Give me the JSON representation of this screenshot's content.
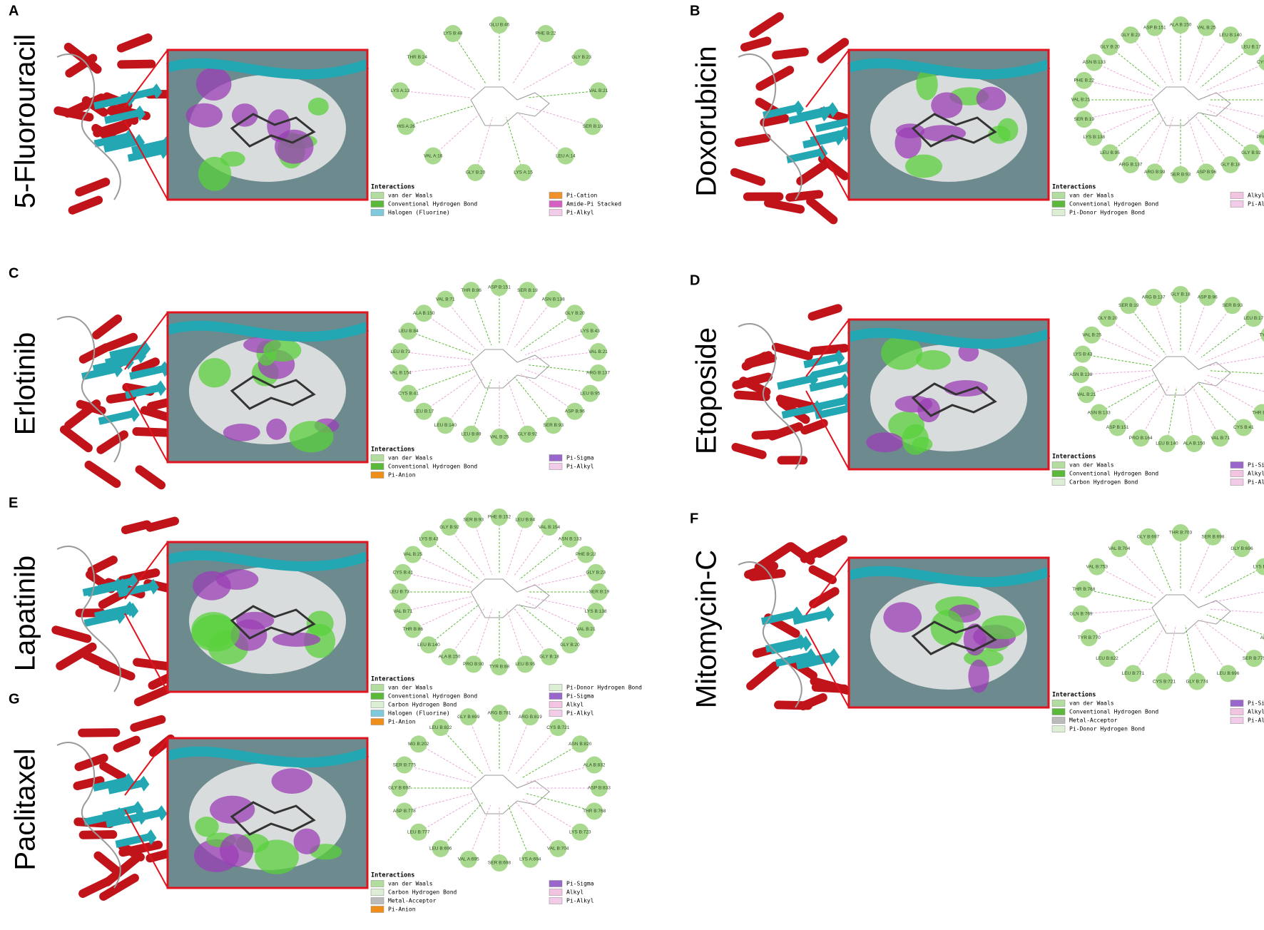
{
  "panels": [
    {
      "letter": "A",
      "name": "5-Fluorouracil",
      "legend_title": "Interactions",
      "legend": [
        {
          "name": "van der Waals",
          "color": "#b2dd9f"
        },
        {
          "name": "Conventional Hydrogen Bond",
          "color": "#5cb83a"
        },
        {
          "name": "Halogen (Fluorine)",
          "color": "#7fc9dc"
        },
        {
          "name": "Pi-Cation",
          "color": "#ef922b"
        },
        {
          "name": "Amide-Pi Stacked",
          "color": "#d660c2"
        },
        {
          "name": "Pi-Alkyl",
          "color": "#f2cbe8"
        }
      ],
      "residues": [
        "GLU B:46",
        "PHE B:22",
        "GLY B:23",
        "VAL B:21",
        "SER B:19",
        "LEU A:14",
        "LYS A:15",
        "GLY B:20",
        "VAL A:16",
        "HIS A:26",
        "LYS A:13",
        "THR B:24",
        "LYS B:48"
      ]
    },
    {
      "letter": "B",
      "name": "Doxorubicin",
      "legend_title": "Interactions",
      "legend": [
        {
          "name": "van der Waals",
          "color": "#b2dd9f"
        },
        {
          "name": "Conventional Hydrogen Bond",
          "color": "#5cb83a"
        },
        {
          "name": "Pi-Donor Hydrogen Bond",
          "color": "#dcefd4"
        },
        {
          "name": "Alkyl",
          "color": "#f2c4e2"
        },
        {
          "name": "Pi-Alkyl",
          "color": "#f2cbe8"
        }
      ],
      "residues": [
        "ALA B:150",
        "VAL B:25",
        "LEU B:140",
        "LEU B:17",
        "CYS B:41",
        "GLN B:31",
        "LEU B:89",
        "TYR B:88",
        "PRO B:90",
        "GLY B:92",
        "GLY B:18",
        "ASP B:96",
        "SER B:93",
        "ARG B:99",
        "ARG B:137",
        "LEU B:95",
        "LYS B:138",
        "SER B:19",
        "VAL B:21",
        "PHE B:22",
        "ASN B:133",
        "GLY B:20",
        "GLY B:23",
        "ASP B:151"
      ]
    },
    {
      "letter": "C",
      "name": "Erlotinib",
      "legend_title": "Interactions",
      "legend": [
        {
          "name": "van der Waals",
          "color": "#b2dd9f"
        },
        {
          "name": "Conventional Hydrogen Bond",
          "color": "#5cb83a"
        },
        {
          "name": "Pi-Anion",
          "color": "#ef8f1a"
        },
        {
          "name": "Pi-Sigma",
          "color": "#9966cc"
        },
        {
          "name": "Pi-Alkyl",
          "color": "#f2cbe8"
        }
      ],
      "residues": [
        "ASP B:151",
        "SER B:19",
        "ASN B:138",
        "GLY B:20",
        "LYS B:43",
        "VAL B:21",
        "ARG B:137",
        "LEU B:95",
        "ASP B:96",
        "SER B:93",
        "GLY B:92",
        "VAL B:25",
        "LEU B:89",
        "LEU B:140",
        "LEU B:17",
        "CYS B:41",
        "VAL B:154",
        "LEU B:73",
        "LEU B:84",
        "ALA B:150",
        "VAL B:71",
        "THR B:86"
      ]
    },
    {
      "letter": "D",
      "name": "Etoposide",
      "legend_title": "Interactions",
      "legend": [
        {
          "name": "van der Waals",
          "color": "#b2dd9f"
        },
        {
          "name": "Conventional Hydrogen Bond",
          "color": "#5cb83a"
        },
        {
          "name": "Carbon Hydrogen Bond",
          "color": "#dcefd4"
        },
        {
          "name": "Pi-Sigma",
          "color": "#9966cc"
        },
        {
          "name": "Alkyl",
          "color": "#f2c4e2"
        },
        {
          "name": "Pi-Alkyl",
          "color": "#f2cbe8"
        }
      ],
      "residues": [
        "GLY B:18",
        "ASP B:96",
        "SER B:93",
        "LEU B:17",
        "TYR B:88",
        "PRO B:90",
        "GLY B:92",
        "LEU B:89",
        "THR B:86",
        "CYS B:41",
        "VAL B:71",
        "ALA B:150",
        "LEU B:140",
        "PRO B:164",
        "ASP B:151",
        "ASN B:133",
        "VAL B:21",
        "ASN B:138",
        "LYS B:43",
        "VAL B:25",
        "GLY B:20",
        "SER B:19",
        "ARG B:137"
      ]
    },
    {
      "letter": "E",
      "name": "Lapatinib",
      "legend_title": "Interactions",
      "legend": [
        {
          "name": "van der Waals",
          "color": "#b2dd9f"
        },
        {
          "name": "Conventional Hydrogen Bond",
          "color": "#5cb83a"
        },
        {
          "name": "Carbon Hydrogen Bond",
          "color": "#dcefd4"
        },
        {
          "name": "Halogen (Fluorine)",
          "color": "#7fc9dc"
        },
        {
          "name": "Pi-Anion",
          "color": "#ef8f1a"
        },
        {
          "name": "Pi-Donor Hydrogen Bond",
          "color": "#dcefd4"
        },
        {
          "name": "Pi-Sigma",
          "color": "#9966cc"
        },
        {
          "name": "Alkyl",
          "color": "#f2c4e2"
        },
        {
          "name": "Pi-Alkyl",
          "color": "#f2cbe8"
        }
      ],
      "residues": [
        "PHE B:152",
        "LEU B:84",
        "VAL B:154",
        "ASN B:133",
        "PHE B:22",
        "GLY B:23",
        "SER B:19",
        "LYS B:138",
        "VAL B:21",
        "GLY B:20",
        "GLY B:18",
        "LEU B:95",
        "TYR B:88",
        "PRO B:90",
        "ALA B:150",
        "LEU B:140",
        "THR B:86",
        "VAL B:71",
        "LEU B:73",
        "CYS B:41",
        "VAL B:25",
        "LYS B:43",
        "GLY B:92",
        "SER B:93"
      ]
    },
    {
      "letter": "F",
      "name": "Mitomycin-C",
      "legend_title": "Interactions",
      "legend": [
        {
          "name": "van der Waals",
          "color": "#b2dd9f"
        },
        {
          "name": "Conventional Hydrogen Bond",
          "color": "#5cb83a"
        },
        {
          "name": "Metal-Acceptor",
          "color": "#bbbbbb"
        },
        {
          "name": "Pi-Donor Hydrogen Bond",
          "color": "#dcefd4"
        },
        {
          "name": "Pi-Sigma",
          "color": "#9966cc"
        },
        {
          "name": "Alkyl",
          "color": "#f2c4e2"
        },
        {
          "name": "Pi-Alkyl",
          "color": "#f2cbe8"
        }
      ],
      "residues": [
        "THR B:703",
        "SER B:698",
        "GLY B:696",
        "LYS B:723",
        "ASP B:833",
        "MG B:202",
        "ARG B:819",
        "SER B:775",
        "LEU B:696",
        "GLY B:774",
        "CYS B:721",
        "LEU B:771",
        "LEU B:822",
        "TYR B:770",
        "GLN B:769",
        "THR B:768",
        "VAL B:753",
        "VAL B:704",
        "GLY B:697"
      ]
    },
    {
      "letter": "G",
      "name": "Paclitaxel",
      "legend_title": "Interactions",
      "legend": [
        {
          "name": "van der Waals",
          "color": "#b2dd9f"
        },
        {
          "name": "Carbon Hydrogen Bond",
          "color": "#dcefd4"
        },
        {
          "name": "Metal-Acceptor",
          "color": "#bbbbbb"
        },
        {
          "name": "Pi-Anion",
          "color": "#ef8f1a"
        },
        {
          "name": "Pi-Sigma",
          "color": "#9966cc"
        },
        {
          "name": "Alkyl",
          "color": "#f2c4e2"
        },
        {
          "name": "Pi-Alkyl",
          "color": "#f2cbe8"
        }
      ],
      "residues": [
        "ARG B:781",
        "ARG B:819",
        "CYS B:721",
        "ASN B:820",
        "ALA B:832",
        "ASP B:833",
        "THR B:768",
        "LYS B:723",
        "VAL B:704",
        "LYS A:694",
        "SER B:698",
        "VAL A:695",
        "LEU B:696",
        "LEU B:777",
        "ASP B:778",
        "GLY B:697",
        "SER B:775",
        "MG B:202",
        "LEU B:822",
        "GLY B:699"
      ]
    }
  ]
}
